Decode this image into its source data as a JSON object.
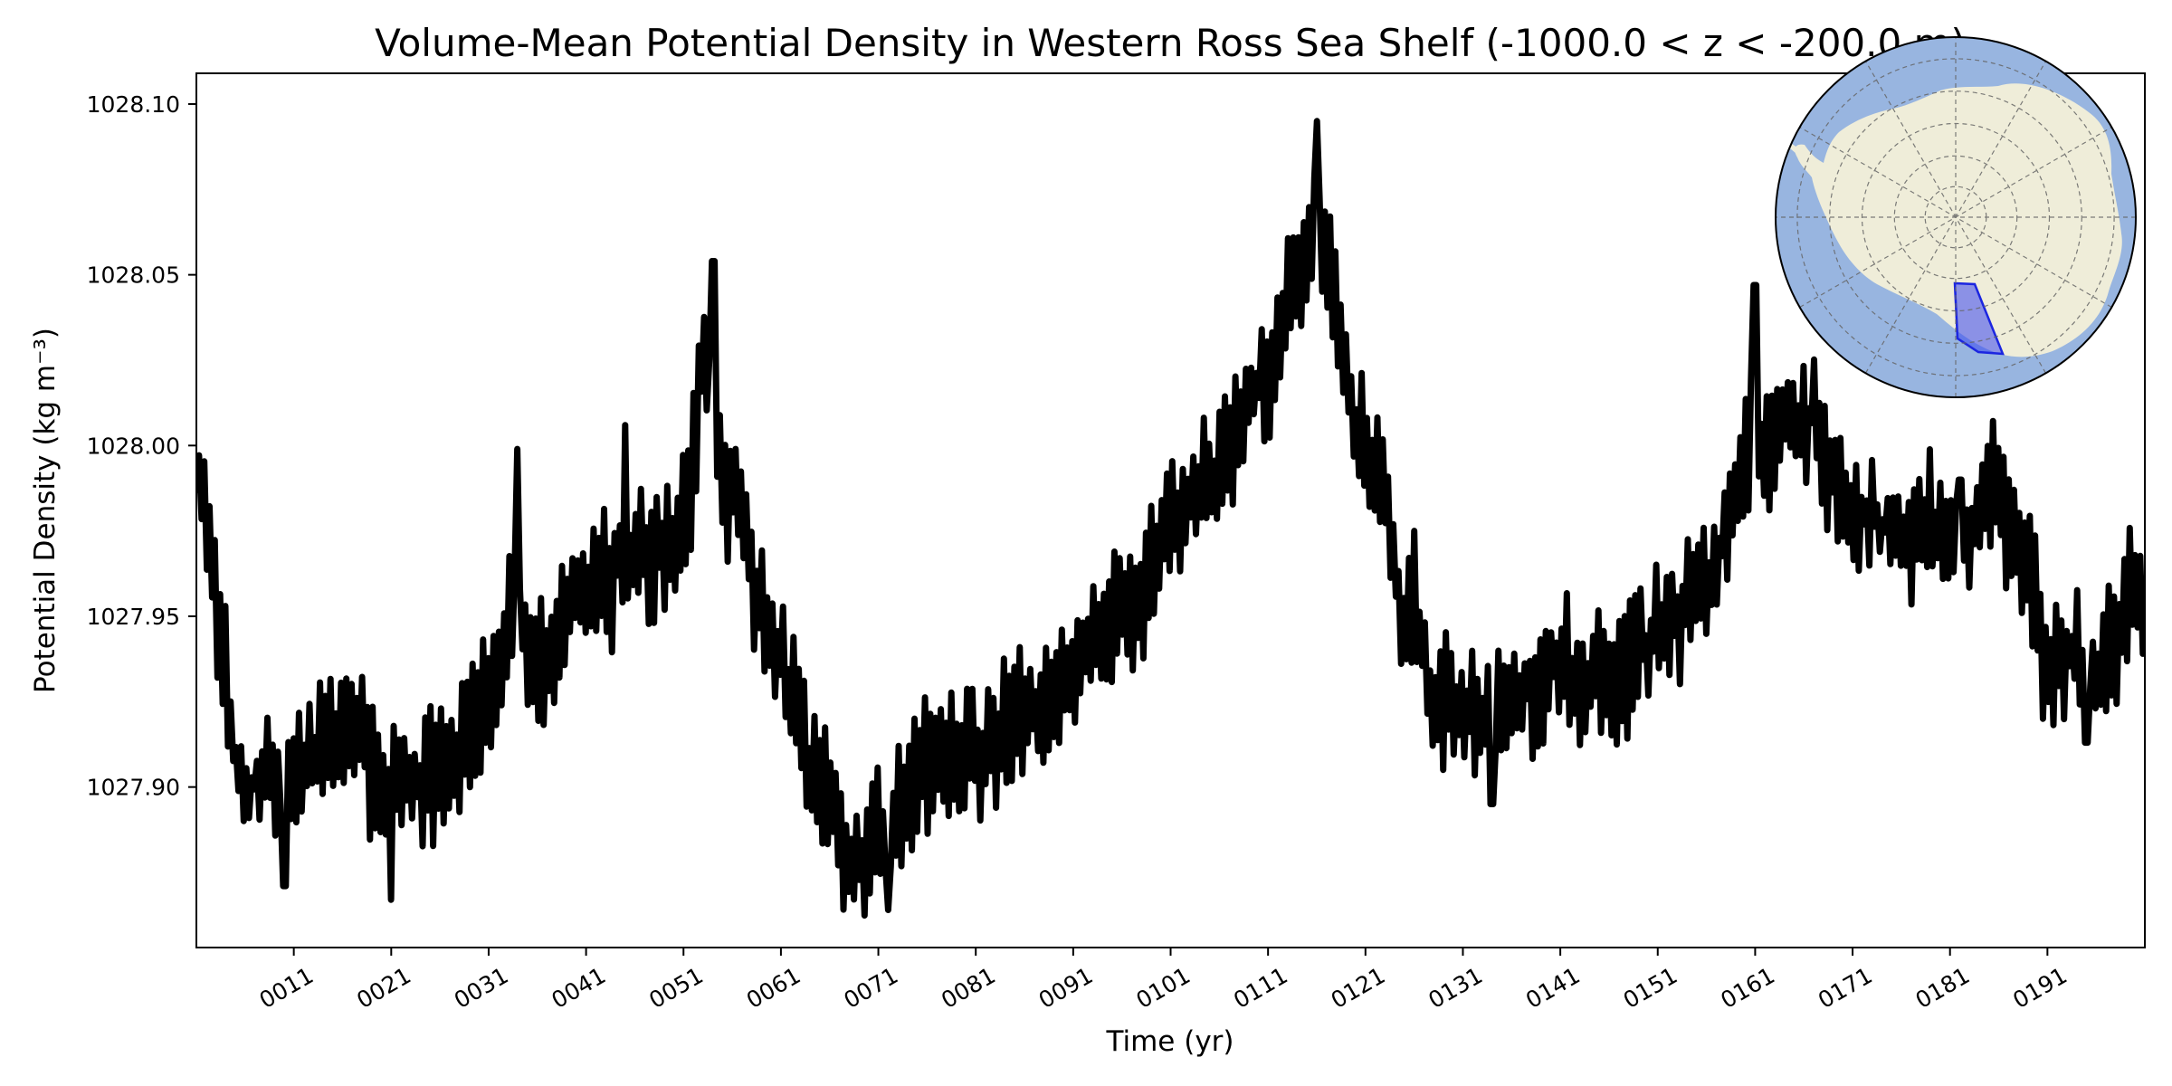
{
  "chart_data": {
    "type": "line",
    "title": "Volume-Mean Potential Density in Western Ross Sea Shelf (-1000.0 < z < -200.0 m)",
    "xlabel": "Time (yr)",
    "ylabel": "Potential Density (kg m⁻³)",
    "xlim": [
      1,
      201
    ],
    "ylim": [
      1027.853,
      1028.109
    ],
    "x_ticks": [
      11,
      21,
      31,
      41,
      51,
      61,
      71,
      81,
      91,
      101,
      111,
      121,
      131,
      141,
      151,
      161,
      171,
      181,
      191
    ],
    "x_tick_labels": [
      "0011",
      "0021",
      "0031",
      "0041",
      "0051",
      "0061",
      "0071",
      "0081",
      "0091",
      "0101",
      "0111",
      "0121",
      "0131",
      "0141",
      "0151",
      "0161",
      "0171",
      "0181",
      "0191"
    ],
    "y_ticks": [
      1027.9,
      1027.95,
      1028.0,
      1028.05,
      1028.1
    ],
    "y_tick_labels": [
      "1027.90",
      "1027.95",
      "1028.00",
      "1028.05",
      "1028.10"
    ],
    "grid": false,
    "series": [
      {
        "color": "#000000",
        "x": [
          1,
          6,
          11,
          16,
          21,
          26,
          31,
          34,
          36,
          41,
          46,
          51,
          53,
          56,
          61,
          66,
          68,
          71,
          73,
          76,
          81,
          86,
          91,
          96,
          101,
          106,
          111,
          114,
          116,
          121,
          126,
          128,
          131,
          136,
          141,
          145,
          151,
          156,
          161,
          166,
          171,
          176,
          181,
          186,
          189,
          191,
          196,
          201
        ],
        "values": [
          1027.987,
          1027.9,
          1027.905,
          1027.915,
          1027.9,
          1027.905,
          1027.925,
          1027.955,
          1027.935,
          1027.96,
          1027.965,
          1027.975,
          1028.02,
          1027.985,
          1027.935,
          1027.895,
          1027.88,
          1027.885,
          1027.895,
          1027.905,
          1027.91,
          1027.92,
          1027.935,
          1027.95,
          1027.975,
          1027.995,
          1028.02,
          1028.05,
          1028.06,
          1028.0,
          1027.945,
          1027.925,
          1027.92,
          1027.925,
          1027.935,
          1027.93,
          1027.945,
          1027.96,
          1028.0,
          1028.01,
          1027.98,
          1027.975,
          1027.975,
          1027.985,
          1027.96,
          1027.94,
          1027.935,
          1027.96
        ],
        "peaks": [
          {
            "x": 10,
            "value": 1027.871
          },
          {
            "x": 21,
            "value": 1027.867
          },
          {
            "x": 34,
            "value": 1027.999
          },
          {
            "x": 45,
            "value": 1028.006
          },
          {
            "x": 54,
            "value": 1028.054
          },
          {
            "x": 72,
            "value": 1027.864
          },
          {
            "x": 116,
            "value": 1028.095
          },
          {
            "x": 126,
            "value": 1027.975
          },
          {
            "x": 134,
            "value": 1027.895
          },
          {
            "x": 161,
            "value": 1028.047
          },
          {
            "x": 182,
            "value": 1027.99
          },
          {
            "x": 195,
            "value": 1027.913
          }
        ]
      }
    ],
    "inset": {
      "type": "map",
      "projection": "south-polar-stereographic",
      "ocean_color": "#98b5e0",
      "land_color": "#efedd9",
      "region_color": "#3846f0",
      "region": "Western Ross Sea Shelf"
    }
  }
}
